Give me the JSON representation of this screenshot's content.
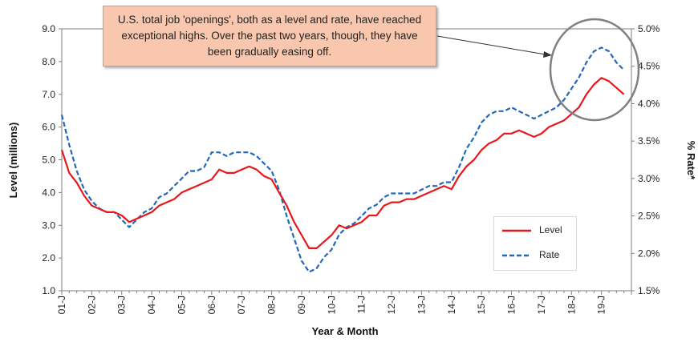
{
  "callout": {
    "text": "U.S. total job 'openings', both as a level and rate, have reached exceptional highs. Over the past two years, though, they have been gradually easing off."
  },
  "chart_data": {
    "type": "line",
    "title": "",
    "xlabel": "Year & Month",
    "ylabel_left": "Level (millions)",
    "ylabel_right": "% Rate*",
    "ylim_left": [
      1.0,
      9.0
    ],
    "ylim_right": [
      1.5,
      5.0
    ],
    "yticks_left": [
      "1.0",
      "2.0",
      "3.0",
      "4.0",
      "5.0",
      "6.0",
      "7.0",
      "8.0",
      "9.0"
    ],
    "yticks_right": [
      "1.5%",
      "2.0%",
      "2.5%",
      "3.0%",
      "3.5%",
      "4.0%",
      "4.5%",
      "5.0%"
    ],
    "xticks": [
      "01-J",
      "02-J",
      "03-J",
      "04-J",
      "05-J",
      "06-J",
      "07-J",
      "08-J",
      "09-J",
      "10-J",
      "11-J",
      "12-J",
      "13-J",
      "14-J",
      "15-J",
      "16-J",
      "17-J",
      "18-J",
      "19-J"
    ],
    "grid": false,
    "legend_position": "bottom-right",
    "colors": {
      "level": "#e8171b",
      "rate": "#2268b8",
      "highlight_circle": "#808080"
    },
    "x": [
      2001.0,
      2001.25,
      2001.5,
      2001.75,
      2002.0,
      2002.25,
      2002.5,
      2002.75,
      2003.0,
      2003.25,
      2003.5,
      2003.75,
      2004.0,
      2004.25,
      2004.5,
      2004.75,
      2005.0,
      2005.25,
      2005.5,
      2005.75,
      2006.0,
      2006.25,
      2006.5,
      2006.75,
      2007.0,
      2007.25,
      2007.5,
      2007.75,
      2008.0,
      2008.25,
      2008.5,
      2008.75,
      2009.0,
      2009.25,
      2009.5,
      2009.75,
      2010.0,
      2010.25,
      2010.5,
      2010.75,
      2011.0,
      2011.25,
      2011.5,
      2011.75,
      2012.0,
      2012.25,
      2012.5,
      2012.75,
      2013.0,
      2013.25,
      2013.5,
      2013.75,
      2014.0,
      2014.25,
      2014.5,
      2014.75,
      2015.0,
      2015.25,
      2015.5,
      2015.75,
      2016.0,
      2016.25,
      2016.5,
      2016.75,
      2017.0,
      2017.25,
      2017.5,
      2017.75,
      2018.0,
      2018.25,
      2018.5,
      2018.75,
      2019.0,
      2019.25,
      2019.5,
      2019.75
    ],
    "series": [
      {
        "name": "Level",
        "axis": "left",
        "style": "solid",
        "values": [
          5.3,
          4.6,
          4.3,
          3.9,
          3.6,
          3.5,
          3.4,
          3.4,
          3.3,
          3.1,
          3.2,
          3.3,
          3.4,
          3.6,
          3.7,
          3.8,
          4.0,
          4.1,
          4.2,
          4.3,
          4.4,
          4.7,
          4.6,
          4.6,
          4.7,
          4.8,
          4.7,
          4.5,
          4.4,
          4.0,
          3.6,
          3.1,
          2.7,
          2.3,
          2.3,
          2.5,
          2.7,
          3.0,
          2.9,
          3.0,
          3.1,
          3.3,
          3.3,
          3.6,
          3.7,
          3.7,
          3.8,
          3.8,
          3.9,
          4.0,
          4.1,
          4.2,
          4.1,
          4.5,
          4.8,
          5.0,
          5.3,
          5.5,
          5.6,
          5.8,
          5.8,
          5.9,
          5.8,
          5.7,
          5.8,
          6.0,
          6.1,
          6.2,
          6.4,
          6.6,
          7.0,
          7.3,
          7.5,
          7.4,
          7.2,
          7.0
        ]
      },
      {
        "name": "Rate",
        "axis": "right",
        "style": "dashed",
        "values": [
          3.85,
          3.45,
          3.1,
          2.85,
          2.7,
          2.6,
          2.55,
          2.55,
          2.45,
          2.35,
          2.45,
          2.55,
          2.6,
          2.75,
          2.8,
          2.9,
          3.0,
          3.1,
          3.1,
          3.15,
          3.35,
          3.35,
          3.3,
          3.35,
          3.35,
          3.35,
          3.3,
          3.2,
          3.1,
          2.85,
          2.5,
          2.2,
          1.9,
          1.75,
          1.8,
          1.95,
          2.05,
          2.25,
          2.35,
          2.4,
          2.5,
          2.6,
          2.65,
          2.75,
          2.8,
          2.8,
          2.8,
          2.8,
          2.85,
          2.9,
          2.9,
          2.95,
          2.95,
          3.15,
          3.4,
          3.55,
          3.75,
          3.85,
          3.9,
          3.9,
          3.95,
          3.9,
          3.85,
          3.8,
          3.85,
          3.9,
          3.95,
          4.05,
          4.2,
          4.35,
          4.55,
          4.7,
          4.75,
          4.7,
          4.55,
          4.45
        ]
      }
    ]
  },
  "legend": {
    "level_label": "Level",
    "rate_label": "Rate"
  }
}
